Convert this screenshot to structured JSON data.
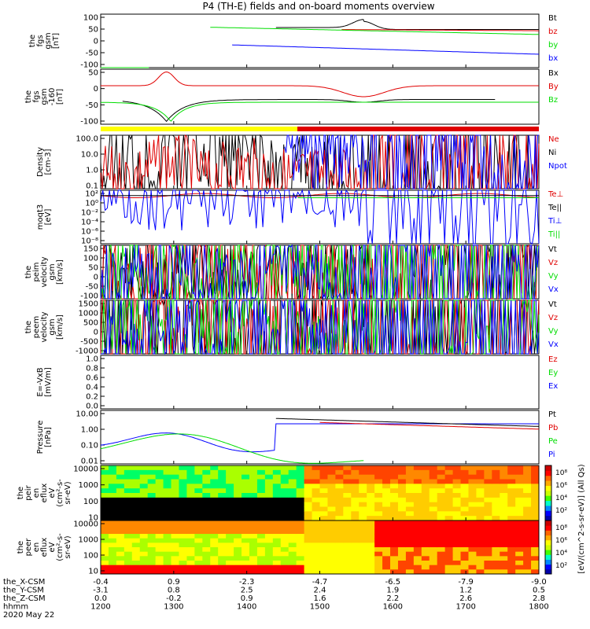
{
  "title": "P4 (TH-E) fields and on-board moments overview",
  "colors": {
    "black": "#000000",
    "red": "#e00000",
    "green": "#00dd00",
    "blue": "#0000ff",
    "yellow": "#ffff00"
  },
  "chart_data": [
    {
      "type": "line",
      "id": "fgs",
      "ylabel": [
        "the",
        "fgs",
        "gsm",
        "[nT]"
      ],
      "ylim": [
        -100,
        100
      ],
      "yticks": [
        "100",
        "50",
        "0",
        "-50",
        "-100"
      ],
      "series": [
        {
          "name": "Bt",
          "color": "#000000"
        },
        {
          "name": "bz",
          "color": "#e00000"
        },
        {
          "name": "by",
          "color": "#00dd00"
        },
        {
          "name": "bx",
          "color": "#0000ff"
        }
      ]
    },
    {
      "type": "line",
      "id": "fgs_clip",
      "ylabel": [
        "the",
        "fgs",
        "gsm",
        "-160",
        "[nT]"
      ],
      "ylim": [
        -130,
        50
      ],
      "yticks": [
        "50",
        "0",
        "-50",
        "-100"
      ],
      "series": [
        {
          "name": "Bx",
          "color": "#000000"
        },
        {
          "name": "By",
          "color": "#e00000"
        },
        {
          "name": "Bz",
          "color": "#00dd00"
        }
      ]
    },
    {
      "type": "bar",
      "id": "mode_bar",
      "values": [
        "yellow",
        "red"
      ],
      "x": [
        "1200-1445",
        "1445-1800"
      ]
    },
    {
      "type": "line",
      "id": "density",
      "ylabel": [
        "Density",
        "[cm-3]"
      ],
      "yscale": "log",
      "yticks": [
        "100.0",
        "10.0",
        "1.0",
        "0.1"
      ],
      "series": [
        {
          "name": "Ne",
          "color": "#e00000"
        },
        {
          "name": "Ni",
          "color": "#000000"
        },
        {
          "name": "Npot",
          "color": "#0000ff"
        }
      ]
    },
    {
      "type": "line",
      "id": "temperature",
      "ylabel": [
        "moqt3",
        "[eV]"
      ],
      "yscale": "log",
      "yticks": [
        "10²",
        "10⁰",
        "10⁻²",
        "10⁻⁴",
        "10⁻⁶",
        "10⁻⁸"
      ],
      "series": [
        {
          "name": "Te⊥",
          "color": "#e00000"
        },
        {
          "name": "Te||",
          "color": "#000000"
        },
        {
          "name": "Ti⊥",
          "color": "#0000ff"
        },
        {
          "name": "Ti||",
          "color": "#00dd00"
        }
      ]
    },
    {
      "type": "line",
      "id": "peim_velocity",
      "ylabel": [
        "the",
        "peim",
        "velocity",
        "gsm",
        "[km/s]"
      ],
      "ylim": [
        -100,
        150
      ],
      "yticks": [
        "150",
        "100",
        "50",
        "0",
        "-50",
        "-100"
      ],
      "series": [
        {
          "name": "Vt",
          "color": "#000000"
        },
        {
          "name": "Vz",
          "color": "#e00000"
        },
        {
          "name": "Vy",
          "color": "#00dd00"
        },
        {
          "name": "Vx",
          "color": "#0000ff"
        }
      ]
    },
    {
      "type": "line",
      "id": "peem_velocity",
      "ylabel": [
        "the",
        "peem",
        "velocity",
        "gsm",
        "[km/s]"
      ],
      "ylim": [
        -1000,
        1500
      ],
      "yticks": [
        "1500",
        "1000",
        "500",
        "0",
        "-500",
        "-1000"
      ],
      "series": [
        {
          "name": "Vt",
          "color": "#000000"
        },
        {
          "name": "Vz",
          "color": "#e00000"
        },
        {
          "name": "Vy",
          "color": "#00dd00"
        },
        {
          "name": "Vx",
          "color": "#0000ff"
        }
      ]
    },
    {
      "type": "line",
      "id": "efield",
      "ylabel": [
        "E=-VxB",
        "[mV/m]"
      ],
      "ylim": [
        0,
        1
      ],
      "yticks": [
        "1.0",
        "0.8",
        "0.6",
        "0.4",
        "0.2",
        "0.0"
      ],
      "series": [
        {
          "name": "Ez",
          "color": "#e00000"
        },
        {
          "name": "Ey",
          "color": "#00dd00"
        },
        {
          "name": "Ex",
          "color": "#0000ff"
        }
      ]
    },
    {
      "type": "line",
      "id": "pressure",
      "ylabel": [
        "Pressure",
        "[nPa]"
      ],
      "yscale": "log",
      "yticks": [
        "10.00",
        "1.00",
        "0.10",
        "0.01"
      ],
      "series": [
        {
          "name": "Pt",
          "color": "#000000"
        },
        {
          "name": "Pb",
          "color": "#e00000"
        },
        {
          "name": "Pe",
          "color": "#00dd00"
        },
        {
          "name": "Pi",
          "color": "#0000ff"
        }
      ]
    },
    {
      "type": "heatmap",
      "id": "peir_spec",
      "ylabel": [
        "the",
        "peir",
        "en",
        "eflux",
        "eV",
        "(cm²-s-",
        "sr-eV)"
      ],
      "yticks": [
        "10000",
        "1000",
        "100",
        "10"
      ]
    },
    {
      "type": "heatmap",
      "id": "peer_spec",
      "ylabel": [
        "the",
        "peer",
        "en",
        "eflux",
        "eV",
        "(cm²-s-",
        "sr-eV)"
      ],
      "yticks": [
        "10000",
        "1000",
        "100",
        "10"
      ]
    }
  ],
  "colorbar": {
    "label": "[eV/(cm^2-s-sr-eV)] (All Qs)",
    "ticks": [
      "10⁸",
      "10⁶",
      "10⁴",
      "10²"
    ]
  },
  "xaxis": {
    "ticks": [
      "1200",
      "1300",
      "1400",
      "1500",
      "1600",
      "1700",
      "1800"
    ]
  },
  "footer": {
    "rows": [
      {
        "label": "the_X-CSM",
        "values": [
          "-0.4",
          "0.9",
          "-2.3",
          "-4.7",
          "-6.5",
          "-7.9",
          "-9.0"
        ]
      },
      {
        "label": "the_Y-CSM",
        "values": [
          "-3.1",
          "0.8",
          "2.5",
          "2.4",
          "1.9",
          "1.2",
          "0.5"
        ]
      },
      {
        "label": "the_Z-CSM",
        "values": [
          "0.0",
          "-0.2",
          "0.9",
          "1.6",
          "2.2",
          "2.6",
          "2.8"
        ]
      },
      {
        "label": "hhmm",
        "values": [
          "1200",
          "1300",
          "1400",
          "1500",
          "1600",
          "1700",
          "1800"
        ]
      }
    ],
    "date": "2020 May 22"
  }
}
